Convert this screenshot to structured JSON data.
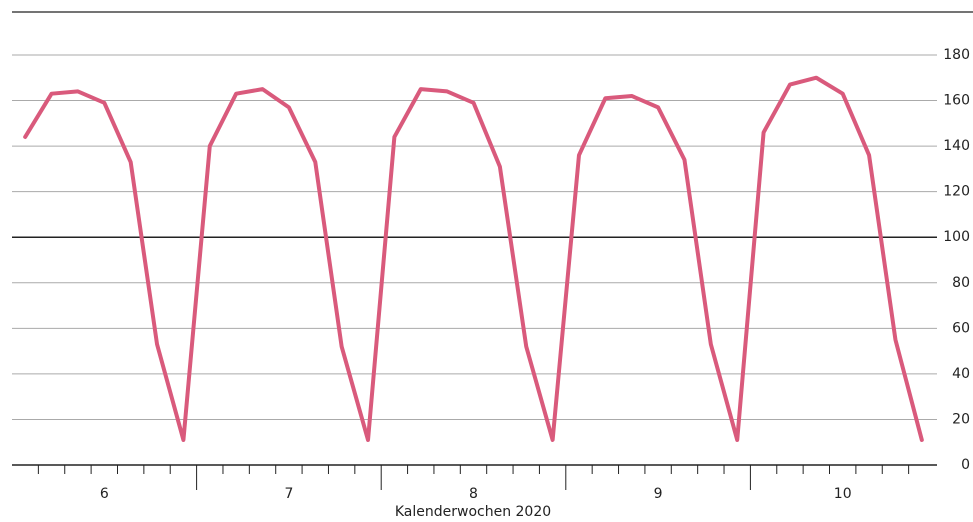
{
  "chart_data": {
    "type": "line",
    "xlabel": "Kalenderwochen 2020",
    "categories": [
      null,
      null,
      null,
      null,
      null,
      null,
      null,
      null,
      null,
      null,
      null,
      null,
      null,
      null,
      null,
      null,
      null,
      null,
      null,
      null,
      null,
      null,
      null,
      null,
      null,
      null,
      null,
      null,
      null,
      null,
      null,
      null,
      null,
      null,
      null
    ],
    "weeks": [
      "6",
      "7",
      "8",
      "9",
      "10"
    ],
    "series": [
      {
        "color": "#d95a7c",
        "values": [
          144,
          163,
          164,
          159,
          133,
          53,
          11,
          140,
          163,
          165,
          157,
          133,
          52,
          11,
          144,
          165,
          164,
          159,
          131,
          52,
          11,
          136,
          161,
          162,
          157,
          134,
          53,
          11,
          146,
          167,
          170,
          163,
          136,
          55,
          11
        ]
      }
    ],
    "ylim": [
      0,
      200
    ],
    "yticks": [
      0,
      20,
      40,
      60,
      80,
      100,
      120,
      140,
      160,
      180
    ],
    "grid": true,
    "baseline": 100,
    "y_axis_side": "right"
  }
}
